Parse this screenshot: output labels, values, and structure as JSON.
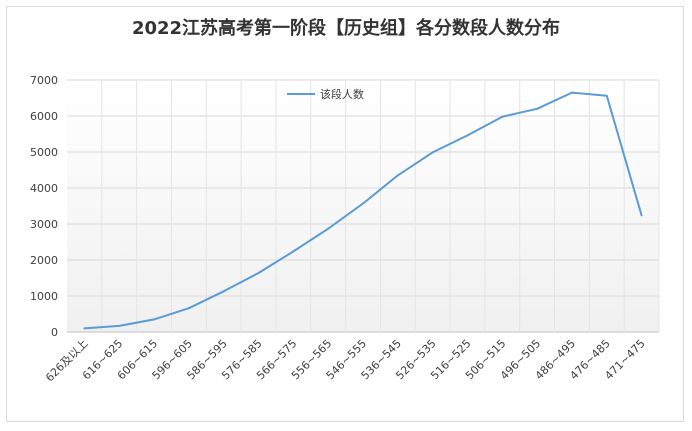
{
  "chart_data": {
    "type": "line",
    "title": "2022江苏高考第一阶段【历史组】各分数段人数分布",
    "xlabel": "",
    "ylabel": "",
    "categories": [
      "626及以上",
      "616~625",
      "606~615",
      "596~605",
      "586~595",
      "576~585",
      "566~575",
      "556~565",
      "546~555",
      "536~545",
      "526~535",
      "516~525",
      "506~515",
      "496~505",
      "486~495",
      "476~485",
      "471~475"
    ],
    "series": [
      {
        "name": "该段人数",
        "color": "#5b9bd5",
        "values": [
          100,
          170,
          350,
          660,
          1130,
          1640,
          2240,
          2870,
          3570,
          4350,
          4990,
          5460,
          5980,
          6200,
          6650,
          6560,
          3240
        ]
      }
    ],
    "ylim": [
      0,
      7000
    ],
    "yticks": [
      0,
      1000,
      2000,
      3000,
      4000,
      5000,
      6000,
      7000
    ],
    "grid": true,
    "legend": "top-center"
  }
}
